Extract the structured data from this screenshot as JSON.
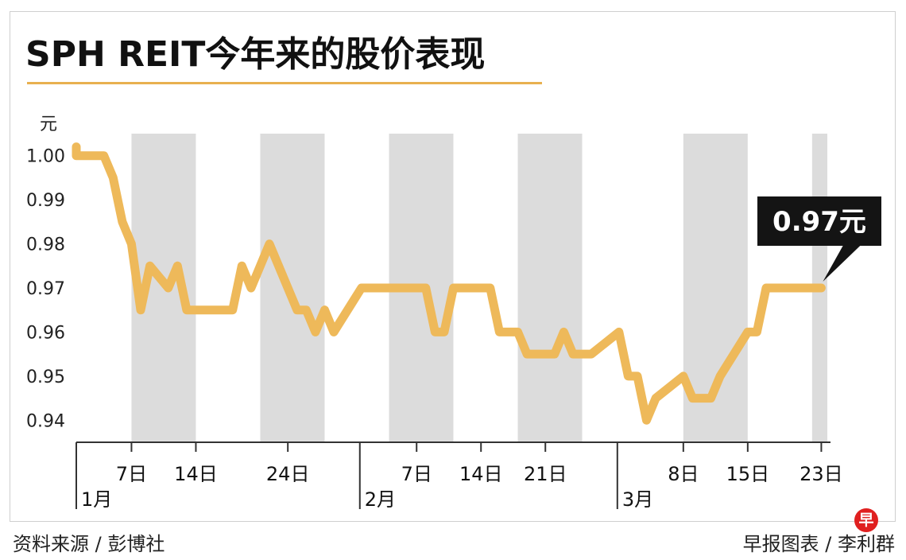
{
  "title": "SPH REIT今年来的股价表现",
  "footer": {
    "source": "资料来源 / 彭博社",
    "credit": "早报图表 / 李利群"
  },
  "logo_text": "早",
  "colors": {
    "line": "#eeb95a",
    "band": "#dcdcdc",
    "title_rule": "#e8b04f",
    "callout_bg": "#141414",
    "logo": "#e02020"
  },
  "chart_data": {
    "type": "line",
    "title": "SPH REIT今年来的股价表现",
    "ylabel": "元",
    "ylim": [
      0.935,
      1.005
    ],
    "yticks": [
      0.94,
      0.95,
      0.96,
      0.97,
      0.98,
      0.99,
      1.0
    ],
    "ytick_labels": [
      "0.94",
      "0.95",
      "0.96",
      "0.97",
      "0.98",
      "0.99",
      "1.00"
    ],
    "xlim": [
      "2021-01-01",
      "2021-03-24"
    ],
    "xticks": [
      {
        "date": "2021-01-07",
        "label": "7日"
      },
      {
        "date": "2021-01-14",
        "label": "14日"
      },
      {
        "date": "2021-01-24",
        "label": "24日"
      },
      {
        "date": "2021-02-07",
        "label": "7日"
      },
      {
        "date": "2021-02-14",
        "label": "14日"
      },
      {
        "date": "2021-02-21",
        "label": "21日"
      },
      {
        "date": "2021-03-08",
        "label": "8日"
      },
      {
        "date": "2021-03-15",
        "label": "15日"
      },
      {
        "date": "2021-03-23",
        "label": "23日"
      }
    ],
    "month_labels": [
      {
        "date": "2021-01-01",
        "label": "1月"
      },
      {
        "date": "2021-02-01",
        "label": "2月"
      },
      {
        "date": "2021-03-01",
        "label": "3月"
      }
    ],
    "shaded_bands": [
      [
        "2021-01-07",
        "2021-01-14"
      ],
      [
        "2021-01-21",
        "2021-01-28"
      ],
      [
        "2021-02-04",
        "2021-02-11"
      ],
      [
        "2021-02-18",
        "2021-02-25"
      ],
      [
        "2021-03-08",
        "2021-03-15"
      ],
      [
        "2021-03-22",
        "2021-03-24"
      ]
    ],
    "series": [
      {
        "x": [
          "2021-01-01",
          "2021-01-01",
          "2021-01-04",
          "2021-01-05",
          "2021-01-06",
          "2021-01-07",
          "2021-01-08",
          "2021-01-09",
          "2021-01-11",
          "2021-01-12",
          "2021-01-13",
          "2021-01-14",
          "2021-01-18",
          "2021-01-19",
          "2021-01-20",
          "2021-01-21",
          "2021-01-22",
          "2021-01-25",
          "2021-01-26",
          "2021-01-27",
          "2021-01-28",
          "2021-01-29",
          "2021-02-01",
          "2021-02-02",
          "2021-02-03",
          "2021-02-04",
          "2021-02-08",
          "2021-02-09",
          "2021-02-10",
          "2021-02-11",
          "2021-02-12",
          "2021-02-15",
          "2021-02-16",
          "2021-02-17",
          "2021-02-18",
          "2021-02-19",
          "2021-02-22",
          "2021-02-23",
          "2021-02-24",
          "2021-02-25",
          "2021-02-26",
          "2021-03-01",
          "2021-03-02",
          "2021-03-03",
          "2021-03-04",
          "2021-03-05",
          "2021-03-08",
          "2021-03-09",
          "2021-03-10",
          "2021-03-11",
          "2021-03-12",
          "2021-03-15",
          "2021-03-16",
          "2021-03-17",
          "2021-03-18",
          "2021-03-19",
          "2021-03-22",
          "2021-03-23"
        ],
        "values": [
          1.002,
          1.0,
          1.0,
          0.995,
          0.985,
          0.98,
          0.965,
          0.975,
          0.97,
          0.975,
          0.965,
          0.965,
          0.965,
          0.975,
          0.97,
          0.975,
          0.98,
          0.965,
          0.965,
          0.96,
          0.965,
          0.96,
          0.97,
          0.97,
          0.97,
          0.97,
          0.97,
          0.96,
          0.96,
          0.97,
          0.97,
          0.97,
          0.96,
          0.96,
          0.96,
          0.955,
          0.955,
          0.96,
          0.955,
          0.955,
          0.955,
          0.96,
          0.95,
          0.95,
          0.94,
          0.945,
          0.95,
          0.945,
          0.945,
          0.945,
          0.95,
          0.96,
          0.96,
          0.97,
          0.97,
          0.97,
          0.97,
          0.97
        ]
      }
    ],
    "callout": {
      "date": "2021-03-23",
      "value": 0.97,
      "label": "0.97元"
    },
    "grid": false,
    "legend": "none"
  }
}
